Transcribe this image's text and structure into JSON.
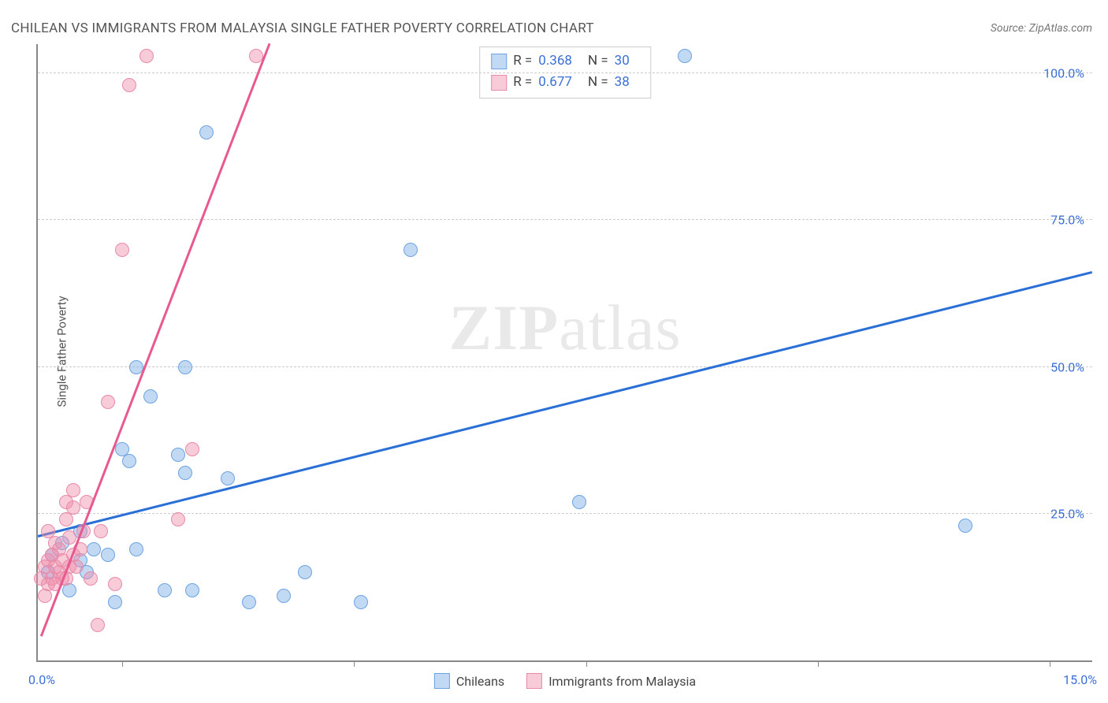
{
  "title": "CHILEAN VS IMMIGRANTS FROM MALAYSIA SINGLE FATHER POVERTY CORRELATION CHART",
  "source_prefix": "Source: ",
  "source_name": "ZipAtlas.com",
  "ylabel": "Single Father Poverty",
  "watermark": "ZIPatlas",
  "chart": {
    "type": "scatter",
    "xlim": [
      0,
      15
    ],
    "ylim": [
      0,
      105
    ],
    "yticks": [
      25.0,
      50.0,
      75.0,
      100.0
    ],
    "ytick_labels": [
      "25.0%",
      "50.0%",
      "75.0%",
      "100.0%"
    ],
    "xtick_marks": [
      1.2,
      4.5,
      7.8,
      11.1,
      14.4
    ],
    "xlim_labels": [
      "0.0%",
      "15.0%"
    ],
    "grid_color": "#cccccc",
    "axis_color": "#888888",
    "background_color": "#ffffff",
    "label_color": "#3b6fd6",
    "dot_radius": 9,
    "series": [
      {
        "name": "Chileans",
        "fill": "rgba(120,170,230,0.45)",
        "stroke": "#6da3e0",
        "trend_color": "#2a6fd6",
        "r": "0.368",
        "n": "30",
        "trend": {
          "x1": 0.0,
          "y1": 21.0,
          "x2": 15.0,
          "y2": 66.0
        },
        "points": [
          [
            0.15,
            15
          ],
          [
            0.2,
            18
          ],
          [
            0.35,
            20
          ],
          [
            0.45,
            12
          ],
          [
            0.6,
            17
          ],
          [
            0.6,
            22
          ],
          [
            0.7,
            15
          ],
          [
            0.8,
            19
          ],
          [
            1.0,
            18
          ],
          [
            1.1,
            10
          ],
          [
            1.2,
            36
          ],
          [
            1.3,
            34
          ],
          [
            1.4,
            19
          ],
          [
            1.4,
            50
          ],
          [
            1.6,
            45
          ],
          [
            1.8,
            12
          ],
          [
            2.0,
            35
          ],
          [
            2.1,
            32
          ],
          [
            2.1,
            50
          ],
          [
            2.2,
            12
          ],
          [
            2.4,
            90
          ],
          [
            2.7,
            31
          ],
          [
            3.0,
            10
          ],
          [
            3.5,
            11
          ],
          [
            3.8,
            15
          ],
          [
            4.6,
            10
          ],
          [
            5.3,
            70
          ],
          [
            7.7,
            27
          ],
          [
            9.2,
            103
          ],
          [
            13.2,
            23
          ]
        ]
      },
      {
        "name": "Immigrants from Malaysia",
        "fill": "rgba(240,140,170,0.45)",
        "stroke": "#e88aa8",
        "trend_color": "#e85a8f",
        "r": "0.677",
        "n": "38",
        "trend": {
          "x1": 0.05,
          "y1": 4.0,
          "x2": 3.3,
          "y2": 105.0
        },
        "points": [
          [
            0.05,
            14
          ],
          [
            0.1,
            11
          ],
          [
            0.1,
            16
          ],
          [
            0.15,
            13
          ],
          [
            0.15,
            17
          ],
          [
            0.15,
            22
          ],
          [
            0.2,
            14
          ],
          [
            0.2,
            18
          ],
          [
            0.25,
            13
          ],
          [
            0.25,
            16
          ],
          [
            0.25,
            20
          ],
          [
            0.3,
            15
          ],
          [
            0.3,
            19
          ],
          [
            0.35,
            14
          ],
          [
            0.35,
            17
          ],
          [
            0.4,
            14
          ],
          [
            0.4,
            24
          ],
          [
            0.4,
            27
          ],
          [
            0.45,
            16
          ],
          [
            0.45,
            21
          ],
          [
            0.5,
            18
          ],
          [
            0.5,
            26
          ],
          [
            0.5,
            29
          ],
          [
            0.55,
            16
          ],
          [
            0.6,
            19
          ],
          [
            0.65,
            22
          ],
          [
            0.7,
            27
          ],
          [
            0.75,
            14
          ],
          [
            0.85,
            6
          ],
          [
            0.9,
            22
          ],
          [
            1.0,
            44
          ],
          [
            1.1,
            13
          ],
          [
            1.2,
            70
          ],
          [
            1.3,
            98
          ],
          [
            1.55,
            103
          ],
          [
            2.0,
            24
          ],
          [
            2.2,
            36
          ],
          [
            3.1,
            103
          ]
        ]
      }
    ]
  },
  "legend_rn": {
    "r_label": "R =",
    "n_label": "N ="
  },
  "legend_bottom": {
    "items": [
      "Chileans",
      "Immigrants from Malaysia"
    ]
  }
}
